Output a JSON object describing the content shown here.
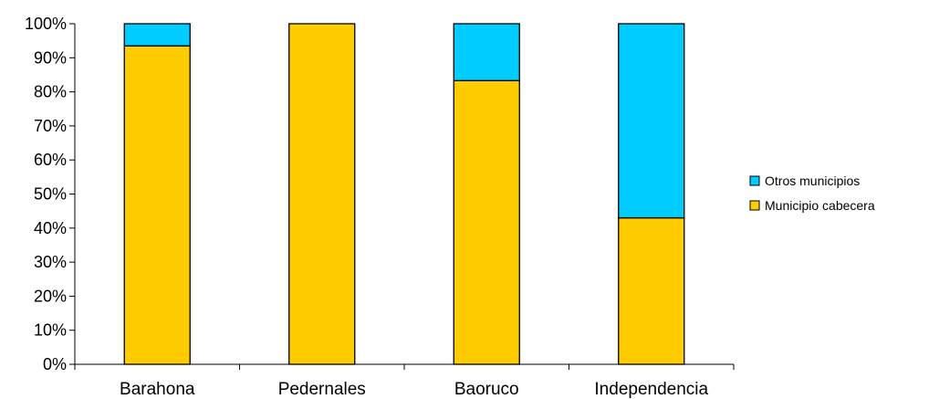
{
  "chart_data": {
    "type": "bar",
    "stacked": true,
    "percent_stacked": true,
    "categories": [
      "Barahona",
      "Pedernales",
      "Baoruco",
      "Independencia"
    ],
    "series": [
      {
        "name": "Municipio cabecera",
        "values": [
          93.5,
          100,
          83.3,
          43
        ],
        "color": "#FFCC00"
      },
      {
        "name": "Otros municipios",
        "values": [
          6.5,
          0,
          16.7,
          57
        ],
        "color": "#00CCFF"
      }
    ],
    "ylim": [
      0,
      100
    ],
    "yticks": [
      "0%",
      "10%",
      "20%",
      "30%",
      "40%",
      "50%",
      "60%",
      "70%",
      "80%",
      "90%",
      "100%"
    ],
    "grid": false,
    "legend": {
      "position": "right",
      "entries": [
        "Otros municipios",
        "Municipio cabecera"
      ]
    },
    "title": "",
    "xlabel": "",
    "ylabel": ""
  }
}
